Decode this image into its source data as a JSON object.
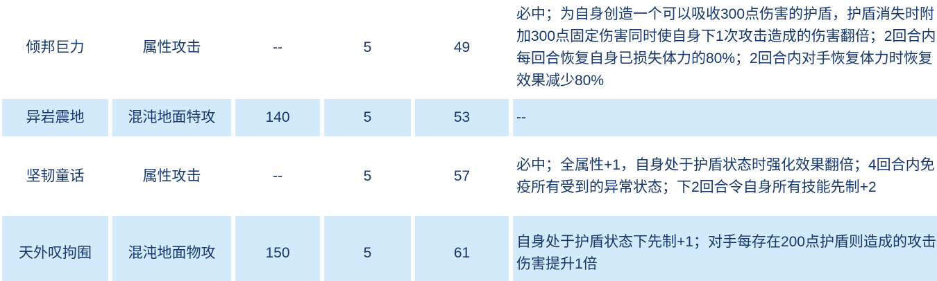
{
  "table": {
    "semantic_columns": [
      "skill_name",
      "skill_type",
      "power",
      "pp",
      "learn_level",
      "effect"
    ],
    "colors": {
      "row_alt_background": "#d3eafa",
      "row_background": "#ffffff",
      "text": "#17376e"
    },
    "rows": [
      {
        "name": "倾邦巨力",
        "type": "属性攻击",
        "power": "--",
        "pp": "5",
        "level": "49",
        "effect": "必中；为自身创造一个可以吸收300点伤害的护盾，护盾消失时附加300点固定伤害同时使自身下1次攻击造成的伤害翻倍；2回合内每回合恢复自身已损失体力的80%；2回合内对手恢复体力时恢复效果减少80%"
      },
      {
        "name": "异岩震地",
        "type": "混沌地面特攻",
        "power": "140",
        "pp": "5",
        "level": "53",
        "effect": "--"
      },
      {
        "name": "坚韧童话",
        "type": "属性攻击",
        "power": "--",
        "pp": "5",
        "level": "57",
        "effect": "必中；全属性+1，自身处于护盾状态时强化效果翻倍；4回合内免疫所有受到的异常状态；下2回合令自身所有技能先制+2"
      },
      {
        "name": "天外叹拘囿",
        "type": "混沌地面物攻",
        "power": "150",
        "pp": "5",
        "level": "61",
        "effect": "自身处于护盾状态下先制+1；对手每存在200点护盾则造成的攻击伤害提升1倍"
      }
    ]
  }
}
